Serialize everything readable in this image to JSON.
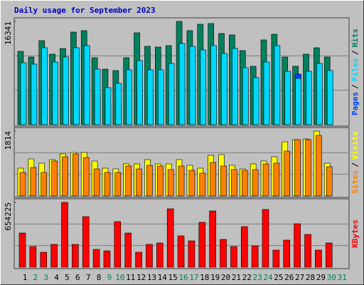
{
  "chart_data": {
    "type": "bar",
    "title": "Daily usage for September 2023",
    "separator": "/",
    "categories": [
      "1",
      "2",
      "3",
      "4",
      "5",
      "6",
      "7",
      "8",
      "9",
      "10",
      "11",
      "12",
      "13",
      "14",
      "15",
      "16",
      "17",
      "18",
      "19",
      "20",
      "21",
      "22",
      "23",
      "24",
      "25",
      "26",
      "27",
      "28",
      "29",
      "30",
      "31"
    ],
    "category_colors": [
      "#000000",
      "#00805c",
      "#00805c",
      "#000000",
      "#000000",
      "#000000",
      "#000000",
      "#000000",
      "#00805c",
      "#00805c",
      "#000000",
      "#000000",
      "#000000",
      "#000000",
      "#000000",
      "#00805c",
      "#00805c",
      "#000000",
      "#000000",
      "#000000",
      "#000000",
      "#000000",
      "#00805c",
      "#00805c",
      "#000000",
      "#000000",
      "#000000",
      "#000000",
      "#000000",
      "#00805c",
      "#00805c"
    ],
    "panels": [
      {
        "ylim": [
          0,
          16341
        ],
        "yticks": [
          16341
        ],
        "grid": true,
        "legend_order": [
          2,
          1,
          0
        ],
        "series": [
          {
            "name": "Hits",
            "color": "#00805c",
            "values": [
              11608,
              10707,
              13299,
              11157,
              12059,
              14651,
              14876,
              10594,
              8791,
              8565,
              10594,
              14538,
              12397,
              12284,
              12510,
              16341,
              14876,
              15891,
              16003,
              14426,
              14200,
              11721,
              9241,
              13411,
              14313,
              10707,
              9241,
              11157,
              12172,
              10707,
              null
            ]
          },
          {
            "name": "Files",
            "color": "#00d8ff",
            "values": [
              9805,
              9580,
              12172,
              9918,
              10707,
              12172,
              12510,
              8791,
              5860,
              6537,
              8678,
              10143,
              8678,
              8678,
              9692,
              12848,
              12397,
              11834,
              12510,
              11270,
              12059,
              9016,
              7438,
              9918,
              12510,
              8453,
              7326,
              8453,
              9692,
              8565,
              null
            ]
          },
          {
            "name": "Pages",
            "color": "#0040ff",
            "values": [
              5400,
              5300,
              6700,
              5450,
              5900,
              6700,
              6900,
              4850,
              3200,
              3600,
              4800,
              5600,
              4800,
              4800,
              5350,
              7100,
              6800,
              6500,
              6900,
              6200,
              6650,
              5000,
              4100,
              5450,
              6900,
              4650,
              8002,
              4650,
              5350,
              4700,
              null
            ]
          }
        ]
      },
      {
        "ylim": [
          0,
          1814
        ],
        "yticks": [
          1814
        ],
        "grid": true,
        "legend_order": [
          1,
          0
        ],
        "series": [
          {
            "name": "Visits",
            "color": "#ffff00",
            "values": [
              777,
              1036,
              917,
              1016,
              1176,
              1216,
              1216,
              977,
              777,
              757,
              897,
              897,
              1016,
              897,
              897,
              1016,
              857,
              777,
              1136,
              1156,
              857,
              757,
              897,
              977,
              1096,
              1515,
              1574,
              1594,
              1814,
              917,
              null
            ]
          },
          {
            "name": "Sites",
            "color": "#ff8000",
            "values": [
              658,
              797,
              658,
              977,
              1096,
              1176,
              1076,
              757,
              658,
              658,
              837,
              757,
              857,
              837,
              737,
              837,
              717,
              638,
              937,
              837,
              737,
              717,
              737,
              897,
              917,
              1256,
              1574,
              1574,
              1694,
              817,
              null
            ]
          }
        ]
      },
      {
        "ylim": [
          0,
          654225
        ],
        "yticks": [
          654225
        ],
        "grid": true,
        "legend_order": [
          0
        ],
        "series": [
          {
            "name": "KBytes",
            "color": "#ff0000",
            "values": [
              345072,
              208481,
              150969,
              230048,
              654225,
              230048,
              510419,
              179725,
              165347,
              460096,
              345072,
              150969,
              230048,
              244426,
              589498,
              316316,
              265993,
              452907,
              567931,
              280371,
              208481,
              409773,
              215670,
              582309,
              172536,
              273182,
              438529,
              330694,
              172536,
              244426,
              null
            ]
          }
        ]
      }
    ]
  }
}
